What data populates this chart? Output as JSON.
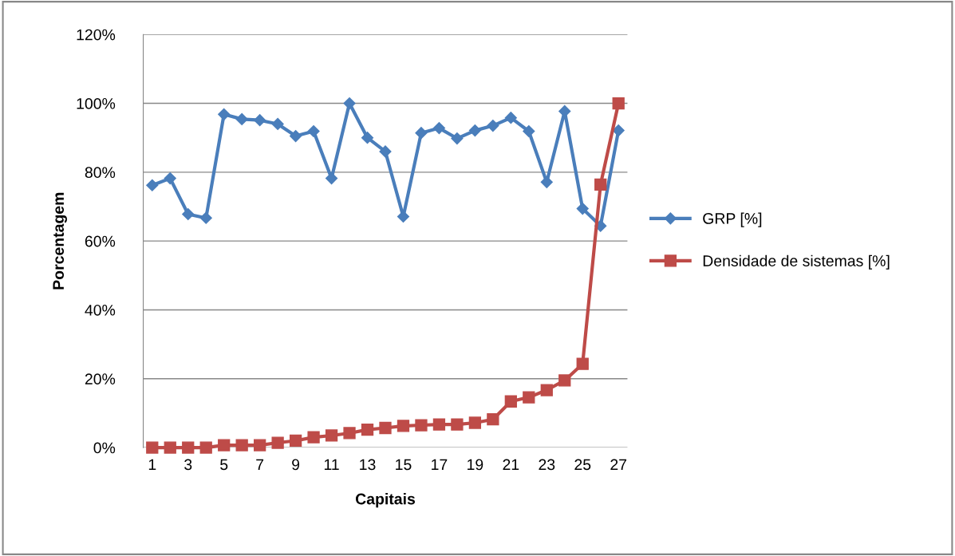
{
  "chart_data": {
    "type": "line",
    "xlabel": "Capitais",
    "ylabel": "Porcentagem",
    "categories": [
      "1",
      null,
      "3",
      null,
      "5",
      null,
      "7",
      null,
      "9",
      null,
      "11",
      null,
      "13",
      null,
      "15",
      null,
      "17",
      null,
      "19",
      null,
      "21",
      null,
      "23",
      null,
      "25",
      null,
      "27"
    ],
    "series": [
      {
        "name": "GRP [%]",
        "color": "#4a7ebb",
        "marker": "diamond",
        "values": [
          76.2,
          78.2,
          67.8,
          66.7,
          96.8,
          95.4,
          95.1,
          94.0,
          90.5,
          91.9,
          78.2,
          100.0,
          90.0,
          86.0,
          67.1,
          91.4,
          92.8,
          89.8,
          92.1,
          93.5,
          95.8,
          91.9,
          77.1,
          97.7,
          69.4,
          64.4,
          92.1
        ]
      },
      {
        "name": "Densidade de sistemas [%]",
        "color": "#be4b48",
        "marker": "square",
        "values": [
          0.0,
          0.0,
          0.0,
          0.0,
          0.7,
          0.7,
          0.7,
          1.4,
          2.0,
          3.0,
          3.5,
          4.2,
          5.2,
          5.7,
          6.3,
          6.5,
          6.7,
          6.7,
          7.2,
          8.2,
          13.4,
          14.6,
          16.7,
          19.5,
          24.3,
          76.4,
          100.0
        ]
      }
    ],
    "ylim": [
      0,
      120
    ],
    "yticks": [
      {
        "value": 0,
        "label": "0%"
      },
      {
        "value": 20,
        "label": "20%"
      },
      {
        "value": 40,
        "label": "40%"
      },
      {
        "value": 60,
        "label": "60%"
      },
      {
        "value": 80,
        "label": "80%"
      },
      {
        "value": 100,
        "label": "100%"
      },
      {
        "value": 120,
        "label": "120%"
      }
    ],
    "grid": "y",
    "legend": "right",
    "line_style": "solid"
  }
}
